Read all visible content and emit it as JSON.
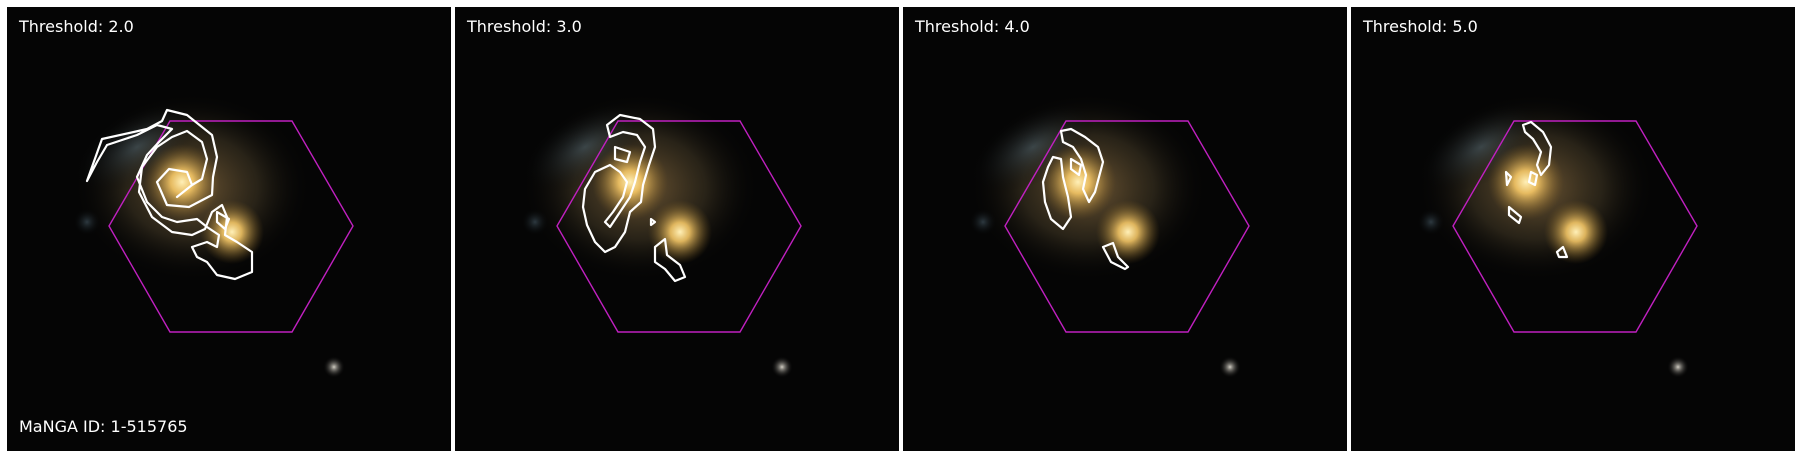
{
  "panels": [
    {
      "threshold_label": "Threshold: 2.0",
      "id_label": "MaNGA ID: 1-515765"
    },
    {
      "threshold_label": "Threshold: 3.0"
    },
    {
      "threshold_label": "Threshold: 4.0"
    },
    {
      "threshold_label": "Threshold: 5.0"
    }
  ],
  "colors": {
    "background": "#050505",
    "hexagon": "#c020c0",
    "contour": "#ffffff",
    "galaxy_core": "#ffd77a",
    "label_text": "#ffffff"
  },
  "icons": [
    "galaxy-image",
    "ifu-hexagon-outline",
    "contour-outline"
  ]
}
